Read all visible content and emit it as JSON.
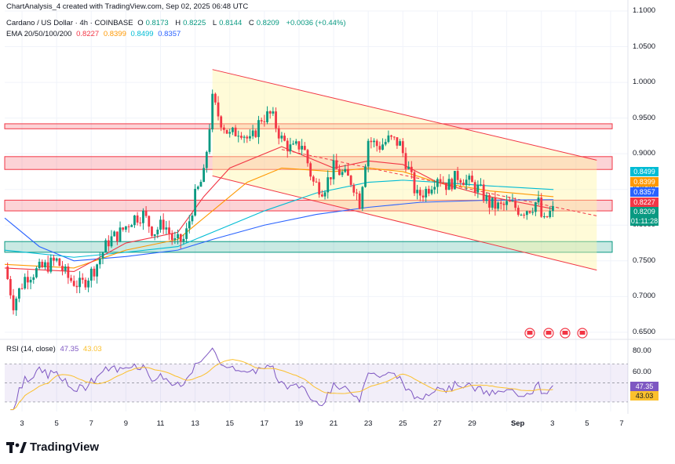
{
  "header": {
    "attribution": "ChartAnalysis_4 created with TradingView.com, Sep 02, 2025 06:48 UTC",
    "symbol": "Cardano / US Dollar · 4h · COINBASE",
    "ohlc": {
      "o_label": "O",
      "o": "0.8173",
      "h_label": "H",
      "h": "0.8225",
      "l_label": "L",
      "l": "0.8144",
      "c_label": "C",
      "c": "0.8209",
      "change": "+0.0036 (+0.44%)"
    },
    "ema_label": "EMA 20/50/100/200",
    "ema_values": [
      "0.8227",
      "0.8399",
      "0.8499",
      "0.8357"
    ]
  },
  "rsi": {
    "label": "RSI (14, close)",
    "value": "47.35",
    "ma": "43.03",
    "levels": [
      "80.00",
      "60.00"
    ]
  },
  "price_tags": [
    {
      "text": "0.8499",
      "color": "#00bcd4",
      "price": 0.8499
    },
    {
      "text": "0.8399",
      "color": "#ff9800",
      "price": 0.8399
    },
    {
      "text": "0.8357",
      "color": "#2962ff",
      "price": 0.8357
    },
    {
      "text": "0.8227",
      "color": "#f23645",
      "price": 0.8227
    },
    {
      "text": "0.8209",
      "color": "#089981",
      "price": 0.8209
    },
    {
      "text": "01:11:28",
      "color": "#089981",
      "price": 0.814
    }
  ],
  "rsi_tags": [
    {
      "text": "47.35",
      "color": "#7e57c2"
    },
    {
      "text": "43.03",
      "color": "#fbc02d"
    }
  ],
  "x_ticks": [
    "3",
    "5",
    "7",
    "9",
    "11",
    "13",
    "15",
    "17",
    "19",
    "21",
    "23",
    "25",
    "27",
    "29",
    "Sep",
    "3",
    "5",
    "7"
  ],
  "brand": "TradingView",
  "colors": {
    "up": "#089981",
    "down": "#f23645",
    "ema20": "#f23645",
    "ema50": "#ff9800",
    "ema100": "#00bcd4",
    "ema200": "#2962ff",
    "rsi": "#7e57c2",
    "rsi_ma": "#fbc02d",
    "channel": "#f23645"
  },
  "chart_data": {
    "type": "candlestick",
    "timeframe": "4h",
    "y_range": [
      0.64,
      1.1
    ],
    "y_ticks": [
      1.1,
      1.05,
      1.0,
      0.95,
      0.9,
      0.85,
      0.8,
      0.75,
      0.7,
      0.65
    ],
    "x_axis": {
      "start_day": 2,
      "end_day": 38,
      "note": "days of Aug 2025 (Sep 1 = 32)"
    },
    "zones": [
      {
        "type": "resistance",
        "from": 0.935,
        "to": 0.942,
        "color": "#f23645"
      },
      {
        "type": "resistance",
        "from": 0.878,
        "to": 0.896,
        "color": "#f23645"
      },
      {
        "type": "resistance",
        "from": 0.82,
        "to": 0.835,
        "color": "#f23645"
      },
      {
        "type": "support",
        "from": 0.762,
        "to": 0.777,
        "color": "#089981"
      }
    ],
    "channel": {
      "upper": [
        [
          14,
          1.018
        ],
        [
          36.2,
          0.891
        ]
      ],
      "lower": [
        [
          14,
          0.869
        ],
        [
          36.2,
          0.737
        ]
      ],
      "mid": [
        [
          18,
          0.906
        ],
        [
          36.2,
          0.813
        ]
      ]
    },
    "anchors": [
      [
        2,
        0.742
      ],
      [
        2.5,
        0.69
      ],
      [
        3.2,
        0.728
      ],
      [
        4,
        0.738
      ],
      [
        5,
        0.75
      ],
      [
        5.7,
        0.725
      ],
      [
        6.4,
        0.715
      ],
      [
        7.2,
        0.74
      ],
      [
        8,
        0.778
      ],
      [
        8.7,
        0.79
      ],
      [
        9.4,
        0.81
      ],
      [
        10,
        0.815
      ],
      [
        10.6,
        0.79
      ],
      [
        11.2,
        0.803
      ],
      [
        11.8,
        0.775
      ],
      [
        12.4,
        0.78
      ],
      [
        13,
        0.84
      ],
      [
        13.5,
        0.87
      ],
      [
        14.0,
        0.975
      ],
      [
        14.4,
        0.95
      ],
      [
        15.0,
        0.925
      ],
      [
        15.6,
        0.935
      ],
      [
        16.2,
        0.915
      ],
      [
        16.8,
        0.95
      ],
      [
        17.4,
        0.955
      ],
      [
        18.0,
        0.92
      ],
      [
        18.6,
        0.905
      ],
      [
        19.2,
        0.915
      ],
      [
        19.8,
        0.86
      ],
      [
        20.4,
        0.85
      ],
      [
        21.0,
        0.88
      ],
      [
        21.6,
        0.87
      ],
      [
        22.1,
        0.86
      ],
      [
        22.5,
        0.832
      ],
      [
        23.0,
        0.92
      ],
      [
        23.6,
        0.91
      ],
      [
        24.2,
        0.92
      ],
      [
        24.8,
        0.915
      ],
      [
        25.3,
        0.88
      ],
      [
        25.8,
        0.84
      ],
      [
        26.4,
        0.85
      ],
      [
        27.0,
        0.87
      ],
      [
        27.6,
        0.855
      ],
      [
        28.2,
        0.87
      ],
      [
        28.8,
        0.86
      ],
      [
        29.4,
        0.85
      ],
      [
        30.0,
        0.83
      ],
      [
        30.6,
        0.825
      ],
      [
        31.2,
        0.83
      ],
      [
        31.8,
        0.82
      ],
      [
        32.4,
        0.825
      ],
      [
        32.8,
        0.835
      ],
      [
        33.1,
        0.8
      ],
      [
        33.4,
        0.815
      ],
      [
        33.7,
        0.821
      ]
    ],
    "emas": {
      "ema20": [
        [
          2,
          0.74
        ],
        [
          6,
          0.735
        ],
        [
          9,
          0.775
        ],
        [
          12,
          0.79
        ],
        [
          13.5,
          0.84
        ],
        [
          15,
          0.88
        ],
        [
          18,
          0.91
        ],
        [
          21,
          0.88
        ],
        [
          23,
          0.89
        ],
        [
          25,
          0.885
        ],
        [
          27,
          0.86
        ],
        [
          30,
          0.84
        ],
        [
          33.7,
          0.8227
        ]
      ],
      "ema50": [
        [
          2,
          0.745
        ],
        [
          6,
          0.74
        ],
        [
          9,
          0.765
        ],
        [
          12,
          0.78
        ],
        [
          14,
          0.82
        ],
        [
          16,
          0.86
        ],
        [
          18,
          0.88
        ],
        [
          21,
          0.875
        ],
        [
          23,
          0.88
        ],
        [
          25,
          0.875
        ],
        [
          27,
          0.86
        ],
        [
          30,
          0.848
        ],
        [
          33.7,
          0.8399
        ]
      ],
      "ema100": [
        [
          2,
          0.765
        ],
        [
          6,
          0.755
        ],
        [
          9,
          0.762
        ],
        [
          12,
          0.77
        ],
        [
          14,
          0.79
        ],
        [
          17,
          0.82
        ],
        [
          20,
          0.845
        ],
        [
          23,
          0.86
        ],
        [
          25,
          0.863
        ],
        [
          27,
          0.86
        ],
        [
          30,
          0.855
        ],
        [
          33.7,
          0.8499
        ]
      ],
      "ema200": [
        [
          2,
          0.81
        ],
        [
          4,
          0.77
        ],
        [
          6,
          0.75
        ],
        [
          9,
          0.756
        ],
        [
          12,
          0.765
        ],
        [
          14,
          0.78
        ],
        [
          17,
          0.8
        ],
        [
          20,
          0.815
        ],
        [
          23,
          0.825
        ],
        [
          26,
          0.832
        ],
        [
          30,
          0.835
        ],
        [
          33.7,
          0.8357
        ]
      ]
    },
    "rsi": {
      "range": [
        20,
        90
      ],
      "band": [
        30,
        70
      ],
      "last": 47.35,
      "ma_last": 43.03
    }
  }
}
